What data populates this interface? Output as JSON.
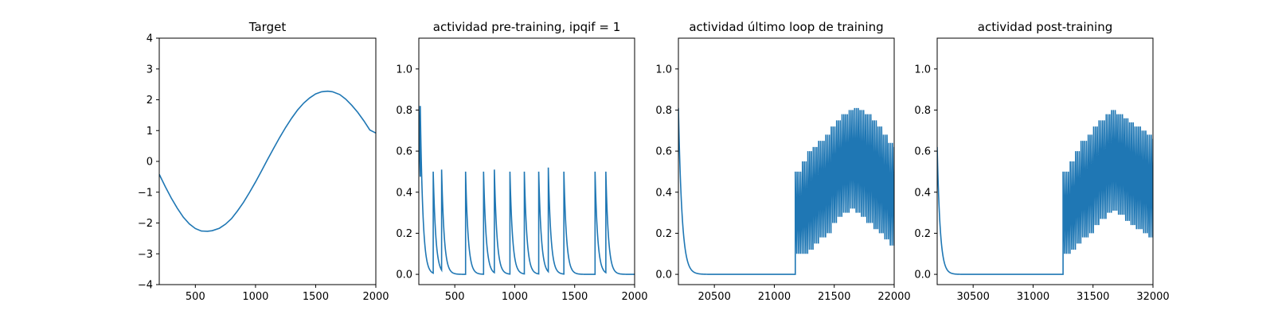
{
  "colors": {
    "line": "#1f77b4",
    "axes": "#000000",
    "background": "#ffffff"
  },
  "chart_data": [
    {
      "type": "line",
      "title": "Target",
      "xlim": [
        200,
        2000
      ],
      "ylim": [
        -4,
        4
      ],
      "xticks": [
        500,
        1000,
        1500,
        2000
      ],
      "xtick_labels": [
        "500",
        "1000",
        "1500",
        "2000"
      ],
      "yticks": [
        -4,
        -3,
        -2,
        -1,
        0,
        1,
        2,
        3,
        4
      ],
      "ytick_labels": [
        "−4",
        "−3",
        "−2",
        "−1",
        "0",
        "1",
        "2",
        "3",
        "4"
      ],
      "series": [
        {
          "x": [
            200,
            250,
            300,
            350,
            400,
            450,
            500,
            550,
            600,
            640,
            700,
            750,
            800,
            850,
            900,
            950,
            1000,
            1050,
            1100,
            1150,
            1200,
            1250,
            1300,
            1350,
            1400,
            1450,
            1500,
            1550,
            1600,
            1640,
            1700,
            1750,
            1800,
            1850,
            1900,
            1950,
            2000
          ],
          "y": [
            -0.42,
            -0.82,
            -1.19,
            -1.52,
            -1.81,
            -2.03,
            -2.18,
            -2.26,
            -2.27,
            -2.25,
            -2.17,
            -2.04,
            -1.86,
            -1.61,
            -1.33,
            -1.01,
            -0.67,
            -0.31,
            0.06,
            0.42,
            0.77,
            1.1,
            1.4,
            1.67,
            1.89,
            2.06,
            2.19,
            2.26,
            2.28,
            2.26,
            2.17,
            2.02,
            1.82,
            1.59,
            1.32,
            1.02,
            0.92
          ]
        }
      ]
    },
    {
      "type": "line",
      "title": "actividad pre-training, ipqif = 1",
      "xlim": [
        200,
        2000
      ],
      "ylim": [
        -0.05,
        1.15
      ],
      "xticks": [
        500,
        1000,
        1500,
        2000
      ],
      "xtick_labels": [
        "500",
        "1000",
        "1500",
        "2000"
      ],
      "yticks": [
        0.0,
        0.2,
        0.4,
        0.6,
        0.8,
        1.0
      ],
      "ytick_labels": [
        "0.0",
        "0.2",
        "0.4",
        "0.6",
        "0.8",
        "1.0"
      ],
      "spikes": [
        {
          "t": 200,
          "peak": 0.82
        },
        {
          "t": 212,
          "peak": 0.82
        },
        {
          "t": 320,
          "peak": 0.5
        },
        {
          "t": 390,
          "peak": 0.51
        },
        {
          "t": 590,
          "peak": 0.5
        },
        {
          "t": 740,
          "peak": 0.5
        },
        {
          "t": 830,
          "peak": 0.51
        },
        {
          "t": 960,
          "peak": 0.5
        },
        {
          "t": 1080,
          "peak": 0.5
        },
        {
          "t": 1200,
          "peak": 0.5
        },
        {
          "t": 1280,
          "peak": 0.52
        },
        {
          "t": 1410,
          "peak": 0.5
        },
        {
          "t": 1670,
          "peak": 0.5
        },
        {
          "t": 1760,
          "peak": 0.5
        }
      ],
      "decay_tau": 22
    },
    {
      "type": "line",
      "title": "actividad último loop de training",
      "xlim": [
        20200,
        22000
      ],
      "ylim": [
        -0.05,
        1.15
      ],
      "xticks": [
        20500,
        21000,
        21500,
        22000
      ],
      "xtick_labels": [
        "20500",
        "21000",
        "21500",
        "22000"
      ],
      "yticks": [
        0.0,
        0.2,
        0.4,
        0.6,
        0.8,
        1.0
      ],
      "ytick_labels": [
        "0.0",
        "0.2",
        "0.4",
        "0.6",
        "0.8",
        "1.0"
      ],
      "initial": {
        "t": 20200,
        "peak": 0.81,
        "tau": 30
      },
      "oscillation": {
        "start": 21175,
        "end": 22000,
        "period": 15,
        "peaks": [
          0.5,
          0.55,
          0.6,
          0.62,
          0.65,
          0.68,
          0.72,
          0.75,
          0.78,
          0.8,
          0.81,
          0.8,
          0.78,
          0.75,
          0.72,
          0.68,
          0.64,
          0.62
        ],
        "troughs": [
          0.1,
          0.1,
          0.12,
          0.15,
          0.18,
          0.2,
          0.25,
          0.28,
          0.3,
          0.32,
          0.3,
          0.28,
          0.25,
          0.22,
          0.2,
          0.17,
          0.14,
          0.12
        ]
      }
    },
    {
      "type": "line",
      "title": "actividad post-training",
      "xlim": [
        30200,
        32000
      ],
      "ylim": [
        -0.05,
        1.15
      ],
      "xticks": [
        30500,
        31000,
        31500,
        32000
      ],
      "xtick_labels": [
        "30500",
        "31000",
        "31500",
        "32000"
      ],
      "yticks": [
        0.0,
        0.2,
        0.4,
        0.6,
        0.8,
        1.0
      ],
      "ytick_labels": [
        "0.0",
        "0.2",
        "0.4",
        "0.6",
        "0.8",
        "1.0"
      ],
      "initial": {
        "t": 30200,
        "peak": 0.62,
        "tau": 25
      },
      "oscillation": {
        "start": 31250,
        "end": 32000,
        "period": 15,
        "peaks": [
          0.5,
          0.55,
          0.6,
          0.65,
          0.68,
          0.72,
          0.75,
          0.78,
          0.8,
          0.78,
          0.76,
          0.74,
          0.72,
          0.7,
          0.68,
          0.66
        ],
        "troughs": [
          0.1,
          0.12,
          0.15,
          0.18,
          0.2,
          0.24,
          0.27,
          0.3,
          0.31,
          0.29,
          0.26,
          0.24,
          0.22,
          0.2,
          0.18,
          0.17
        ]
      }
    }
  ]
}
